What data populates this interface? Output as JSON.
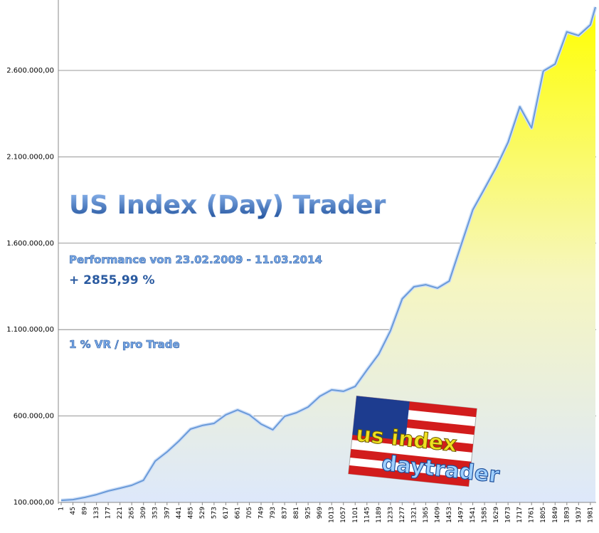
{
  "chart_data": {
    "type": "area",
    "title": "US Index (Day) Trader",
    "subtitle": "Performance  von  23.02.2009 - 11.03.2014",
    "annotations": [
      "+ 2855,99 %",
      "1 % VR / pro Trade"
    ],
    "logo": [
      "us index",
      "daytrader"
    ],
    "x": [
      1,
      45,
      89,
      133,
      177,
      221,
      265,
      309,
      353,
      397,
      441,
      485,
      529,
      573,
      617,
      661,
      705,
      749,
      793,
      837,
      881,
      925,
      969,
      1013,
      1057,
      1101,
      1145,
      1189,
      1233,
      1277,
      1321,
      1365,
      1409,
      1453,
      1497,
      1541,
      1585,
      1629,
      1673,
      1717,
      1761,
      1805,
      1849,
      1893,
      1937,
      1981,
      2000
    ],
    "values": [
      112000,
      116000,
      129000,
      145000,
      166000,
      182000,
      199000,
      228000,
      339000,
      392000,
      454000,
      524000,
      545000,
      557000,
      607000,
      635000,
      607000,
      553000,
      520000,
      598000,
      619000,
      652000,
      714000,
      751000,
      743000,
      771000,
      866000,
      957000,
      1093000,
      1278000,
      1348000,
      1360000,
      1340000,
      1381000,
      1587000,
      1793000,
      1916000,
      2040000,
      2184000,
      2390000,
      2267000,
      2596000,
      2637000,
      2823000,
      2802000,
      2864000,
      2967000
    ],
    "color": "#6a9ad8",
    "xlim": [
      1,
      2000
    ],
    "xticks": [
      1,
      45,
      89,
      133,
      177,
      221,
      265,
      309,
      353,
      397,
      441,
      485,
      529,
      573,
      617,
      661,
      705,
      749,
      793,
      837,
      881,
      925,
      969,
      1013,
      1057,
      1101,
      1145,
      1189,
      1233,
      1277,
      1321,
      1365,
      1409,
      1453,
      1497,
      1541,
      1585,
      1629,
      1673,
      1717,
      1761,
      1805,
      1849,
      1893,
      1937,
      1981
    ],
    "ylim": [
      100000,
      2987000
    ],
    "yticks": [
      {
        "value": 100000,
        "label": "100.000,00"
      },
      {
        "value": 600000,
        "label": "600.000,00"
      },
      {
        "value": 1100000,
        "label": "1.100.000,00"
      },
      {
        "value": 1600000,
        "label": "1.600.000,00"
      },
      {
        "value": 2100000,
        "label": "2.100.000,00"
      },
      {
        "value": 2600000,
        "label": "2.600.000,00"
      }
    ],
    "grid": true
  }
}
